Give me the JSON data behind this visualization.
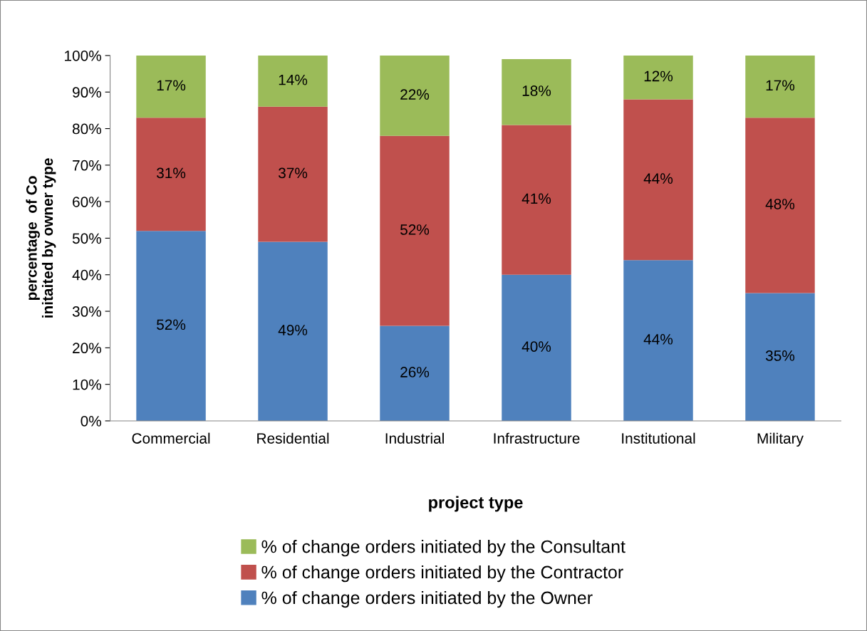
{
  "chart_data": {
    "type": "bar",
    "stacked": true,
    "xlabel": "project type",
    "ylabel": "percentage  of Co\ninitaited by owner type",
    "categories": [
      "Commercial",
      "Residential",
      "Industrial",
      "Infrastructure",
      "Institutional",
      "Military"
    ],
    "series": [
      {
        "name": "% of change orders initiated by the Owner",
        "color": "#4f81bd",
        "values": [
          52,
          49,
          26,
          40,
          44,
          35
        ],
        "value_labels": [
          "52%",
          "49%",
          "26%",
          "40%",
          "44%",
          "35%"
        ]
      },
      {
        "name": "% of change orders initiated by the Contractor",
        "color": "#c0504d",
        "values": [
          31,
          37,
          52,
          41,
          44,
          48
        ],
        "value_labels": [
          "31%",
          "37%",
          "52%",
          "41%",
          "44%",
          "48%"
        ]
      },
      {
        "name": "% of change orders initiated by the Consultant",
        "color": "#9bbb59",
        "values": [
          17,
          14,
          22,
          18,
          12,
          17
        ],
        "value_labels": [
          "17%",
          "14%",
          "22%",
          "18%",
          "12%",
          "17%"
        ]
      }
    ],
    "ylim": [
      0,
      100
    ],
    "yticks": [
      {
        "value": 0,
        "label": "0%"
      },
      {
        "value": 10,
        "label": "10%"
      },
      {
        "value": 20,
        "label": "20%"
      },
      {
        "value": 30,
        "label": "30%"
      },
      {
        "value": 40,
        "label": "40%"
      },
      {
        "value": 50,
        "label": "50%"
      },
      {
        "value": 60,
        "label": "60%"
      },
      {
        "value": 70,
        "label": "70%"
      },
      {
        "value": 80,
        "label": "80%"
      },
      {
        "value": 90,
        "label": "90%"
      },
      {
        "value": 100,
        "label": "100%"
      }
    ],
    "grid": false,
    "legend": "bottom"
  }
}
